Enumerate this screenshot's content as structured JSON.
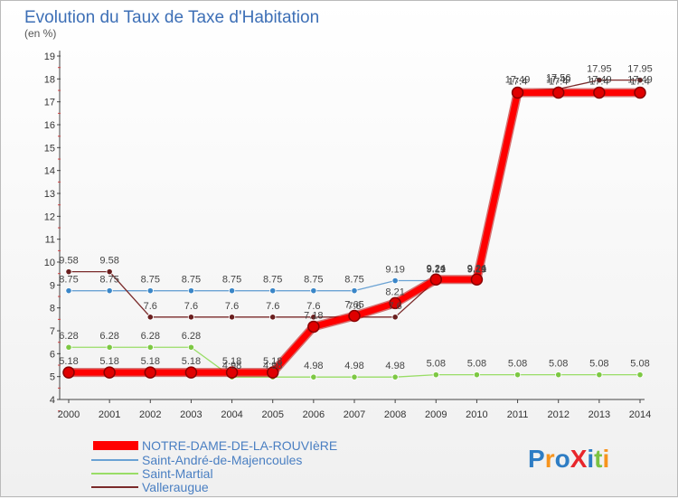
{
  "chart_data": {
    "type": "line",
    "title": "Evolution du Taux de Taxe d'Habitation",
    "ylabel": "(en %)",
    "xlabel": "",
    "categories": [
      "2000",
      "2001",
      "2002",
      "2003",
      "2004",
      "2005",
      "2006",
      "2007",
      "2008",
      "2009",
      "2010",
      "2011",
      "2012",
      "2013",
      "2014"
    ],
    "ylim": [
      4,
      19
    ],
    "yticks": [
      "4",
      "5",
      "6",
      "7",
      "8",
      "9",
      "10",
      "11",
      "12",
      "13",
      "14",
      "15",
      "16",
      "17",
      "18",
      "19"
    ],
    "grid": false,
    "legend_position": "bottom-left",
    "series": [
      {
        "name": "NOTRE-DAME-DE-LA-ROUVIèRE",
        "color": "#ff0000",
        "marker_color": "#e00000",
        "values": [
          5.18,
          5.18,
          5.18,
          5.18,
          5.18,
          5.18,
          7.18,
          7.65,
          8.21,
          9.24,
          9.24,
          17.4,
          17.4,
          17.4,
          17.4
        ],
        "labels": [
          "5.18",
          "5.18",
          "5.18",
          "5.18",
          "5.18",
          "5.18",
          "7.18",
          "7.65",
          "8.21",
          "9.24",
          "9.24",
          "17.4",
          "17.4",
          "17.4",
          "17.4"
        ]
      },
      {
        "name": "Saint-André-de-Majencoules",
        "color": "#6aa2d4",
        "marker_color": "#3a86c8",
        "values": [
          8.75,
          8.75,
          8.75,
          8.75,
          8.75,
          8.75,
          8.75,
          8.75,
          9.19,
          9.19,
          9.19,
          17.4,
          17.49,
          17.49,
          17.49
        ],
        "labels": [
          "8.75",
          "8.75",
          "8.75",
          "8.75",
          "8.75",
          "8.75",
          "8.75",
          "8.75",
          "9.19",
          "9.19",
          "9.19",
          "17.4",
          "17.49",
          "17.49",
          "17.49"
        ]
      },
      {
        "name": "Saint-Martial",
        "color": "#99dd66",
        "marker_color": "#7dc843",
        "values": [
          6.28,
          6.28,
          6.28,
          6.28,
          4.98,
          4.98,
          4.98,
          4.98,
          4.98,
          5.08,
          5.08,
          5.08,
          5.08,
          5.08,
          5.08
        ],
        "labels": [
          "6.28",
          "6.28",
          "6.28",
          "6.28",
          "4.98",
          "4.98",
          "4.98",
          "4.98",
          "4.98",
          "5.08",
          "5.08",
          "5.08",
          "5.08",
          "5.08",
          "5.08"
        ]
      },
      {
        "name": "Valleraugue",
        "color": "#7a2a2a",
        "marker_color": "#6a1f1f",
        "values": [
          9.58,
          9.58,
          7.6,
          7.6,
          7.6,
          7.6,
          7.6,
          7.6,
          7.6,
          9.21,
          9.21,
          17.49,
          17.56,
          17.95,
          17.95
        ],
        "labels": [
          "9.58",
          "9.58",
          "7.6",
          "7.6",
          "7.6",
          "7.6",
          "7.6",
          "7.6",
          "7.6",
          "9.21",
          "9.21",
          "17.49",
          "17.56",
          "17.95",
          "17.95"
        ]
      }
    ]
  },
  "branding": {
    "logo_text": "ProXiti",
    "logo_letters": [
      "P",
      "r",
      "o",
      "X",
      "i",
      "t",
      "i"
    ],
    "logo_colors": [
      "#2e7dc4",
      "#f7941d",
      "#2e7dc4",
      "#e8262b",
      "#2e7dc4",
      "#7cc242",
      "#f7941d"
    ]
  }
}
